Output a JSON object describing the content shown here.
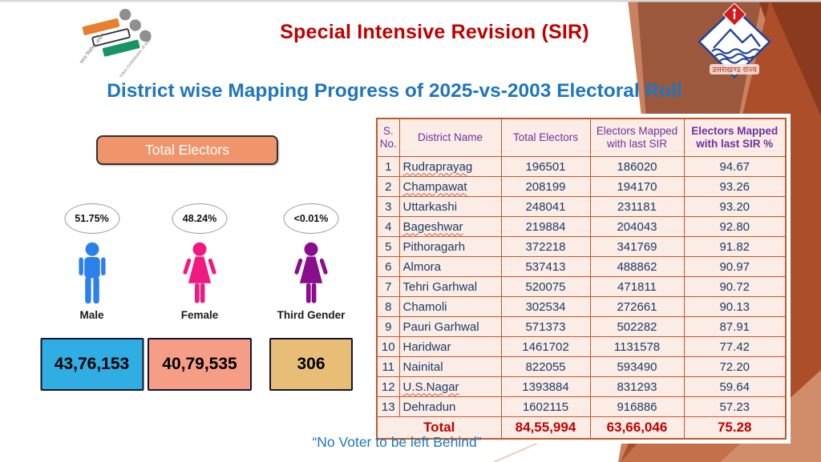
{
  "header": {
    "title": "Special Intensive Revision (SIR)",
    "subtitle": "District wise Mapping Progress of 2025-vs-2003 Electoral Roll",
    "eci_logo_text_left": "भारत निर्वाचन आयोग",
    "eci_logo_text_right": "Election Commission of India",
    "uk_logo_text": "उत्तराखण्ड राज्य"
  },
  "left_panel": {
    "button_label": "Total Electors",
    "genders": [
      {
        "icon": "male-figure-icon",
        "label": "Male",
        "percent": "51.75%",
        "count": "43,76,153",
        "figure_color": "#2C80EA",
        "box_color": "#30ADE2"
      },
      {
        "icon": "female-figure-icon",
        "label": "Female",
        "percent": "48.24%",
        "count": "40,79,535",
        "figure_color": "#F01981",
        "box_color": "#F59E85"
      },
      {
        "icon": "third-gender-figure-icon",
        "label": "Third Gender",
        "percent": "<0.01%",
        "count": "306",
        "figure_color": "#8A0D8C",
        "box_color": "#E8BE77"
      }
    ]
  },
  "table": {
    "columns": [
      "S. No.",
      "District Name",
      "Total Electors",
      "Electors Mapped with last SIR",
      "Electors Mapped with last SIR %"
    ],
    "rows": [
      {
        "sno": "1",
        "district": "Rudraprayag",
        "total": "196501",
        "mapped": "186020",
        "pct": "94.67",
        "misspelled": true
      },
      {
        "sno": "2",
        "district": "Champawat",
        "total": "208199",
        "mapped": "194170",
        "pct": "93.26",
        "misspelled": true
      },
      {
        "sno": "3",
        "district": "Uttarkashi",
        "total": "248041",
        "mapped": "231181",
        "pct": "93.20",
        "misspelled": false
      },
      {
        "sno": "4",
        "district": "Bageshwar",
        "total": "219884",
        "mapped": "204043",
        "pct": "92.80",
        "misspelled": true
      },
      {
        "sno": "5",
        "district": "Pithoragarh",
        "total": "372218",
        "mapped": "341769",
        "pct": "91.82",
        "misspelled": false
      },
      {
        "sno": "6",
        "district": "Almora",
        "total": "537413",
        "mapped": "488862",
        "pct": "90.97",
        "misspelled": false
      },
      {
        "sno": "7",
        "district": "Tehri Garhwal",
        "total": "520075",
        "mapped": "471811",
        "pct": "90.72",
        "misspelled": false
      },
      {
        "sno": "8",
        "district": "Chamoli",
        "total": "302534",
        "mapped": "272661",
        "pct": "90.13",
        "misspelled": false
      },
      {
        "sno": "9",
        "district": "Pauri Garhwal",
        "total": "571373",
        "mapped": "502282",
        "pct": "87.91",
        "misspelled": false
      },
      {
        "sno": "10",
        "district": "Haridwar",
        "total": "1461702",
        "mapped": "1131578",
        "pct": "77.42",
        "misspelled": false
      },
      {
        "sno": "11",
        "district": "Nainital",
        "total": "822055",
        "mapped": "593490",
        "pct": "72.20",
        "misspelled": false
      },
      {
        "sno": "12",
        "district": "U.S.Nagar",
        "total": "1393884",
        "mapped": "831293",
        "pct": "59.64",
        "misspelled": true
      },
      {
        "sno": "13",
        "district": "Dehradun",
        "total": "1602115",
        "mapped": "916886",
        "pct": "57.23",
        "misspelled": false
      }
    ],
    "total": {
      "label": "Total",
      "total": "84,55,994",
      "mapped": "63,66,046",
      "pct": "75.28"
    }
  },
  "footer": {
    "quote": "“No Voter to be left Behind”"
  },
  "colors": {
    "title_red": "#C00000",
    "blue_text": "#1E76BE",
    "table_border": "#C2572B",
    "header_purple": "#7030A0",
    "body_navy": "#1F3864",
    "button_fill": "#F0956B",
    "bg_rust": "#AD4E2A",
    "bg_brown": "#9C583C",
    "bg_salmon": "#C8825F"
  }
}
